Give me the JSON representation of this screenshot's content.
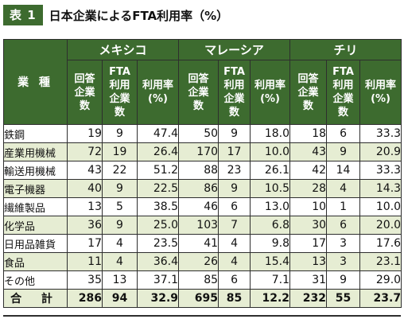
{
  "header": {
    "badge": "表 1",
    "title": "日本企業によるFTA利用率（%）"
  },
  "table": {
    "type_label": "業 種",
    "groups": [
      "メキシコ",
      "マレーシア",
      "チリ"
    ],
    "sub_headers": [
      "回答\n企業\n数",
      "FTA\n利用\n企業\n数",
      "利用率\n(%)"
    ],
    "rows": [
      {
        "label": "鉄鋼",
        "values": [
          "19",
          "9",
          "47.4",
          "50",
          "9",
          "18.0",
          "18",
          "6",
          "33.3"
        ]
      },
      {
        "label": "産業用機械",
        "values": [
          "72",
          "19",
          "26.4",
          "170",
          "17",
          "10.0",
          "43",
          "9",
          "20.9"
        ]
      },
      {
        "label": "輸送用機械",
        "values": [
          "43",
          "22",
          "51.2",
          "88",
          "23",
          "26.1",
          "42",
          "14",
          "33.3"
        ]
      },
      {
        "label": "電子機器",
        "values": [
          "40",
          "9",
          "22.5",
          "86",
          "9",
          "10.5",
          "28",
          "4",
          "14.3"
        ]
      },
      {
        "label": "繊維製品",
        "values": [
          "13",
          "5",
          "38.5",
          "46",
          "6",
          "13.0",
          "10",
          "1",
          "10.0"
        ]
      },
      {
        "label": "化学品",
        "values": [
          "36",
          "9",
          "25.0",
          "103",
          "7",
          "6.8",
          "30",
          "6",
          "20.0"
        ]
      },
      {
        "label": "日用品雑貨",
        "values": [
          "17",
          "4",
          "23.5",
          "41",
          "4",
          "9.8",
          "17",
          "3",
          "17.6"
        ]
      },
      {
        "label": "食品",
        "values": [
          "11",
          "4",
          "36.4",
          "26",
          "4",
          "15.4",
          "13",
          "3",
          "23.1"
        ]
      },
      {
        "label": "その他",
        "values": [
          "35",
          "13",
          "37.1",
          "85",
          "6",
          "7.1",
          "31",
          "9",
          "29.0"
        ]
      }
    ],
    "total": {
      "label": "合 計",
      "values": [
        "286",
        "94",
        "32.9",
        "695",
        "85",
        "12.2",
        "232",
        "55",
        "23.7"
      ]
    }
  }
}
